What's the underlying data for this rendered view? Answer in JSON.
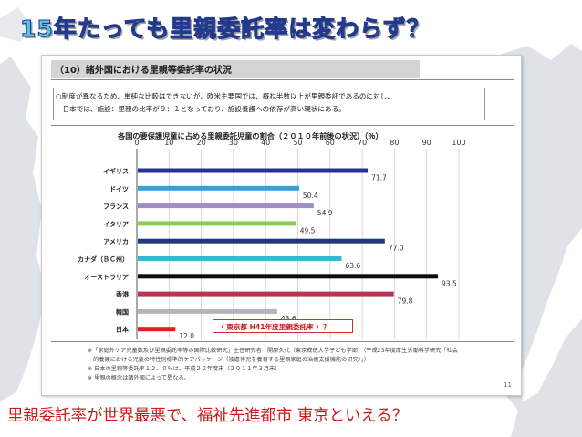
{
  "slide": {
    "title": "15年たっても里親委託率は変わらず？",
    "bottom_text": "里親委託率が世界最悪で、福祉先進都市 東京といえる？"
  },
  "doc": {
    "heading": "（10）諸外国における里親等委託率の状況",
    "note_line1": "○制度が異なるため、単純な比較はできないが、欧米主要国では、概ね半数以上が里親委託であるのに対し、",
    "note_line2": "　日本では、施設：里親の比率が９：１となっており、施設養護への依存が高い現状にある。",
    "footnotes": [
      "※「家庭外ケア児童数及び里親委託率等の国際比較研究」主任研究者　開原久代（東京成徳大学子ども学部）（平成23年度厚生労働科学研究「社会",
      "　的養護における児童の特性別標準的ケアパッケージ（被虐待児を養育する里親家庭の治療支援機能の研究）」）",
      "※ 日本の里親等委託率１２．０％は、平成２２年度末（２０１１年３月末）",
      "※ 里親の概念は諸外国によって異なる。"
    ],
    "page_number": "11"
  },
  "annotation": {
    "text": "（ 東京都 H41年度里親委託率 ）？"
  },
  "chart_data": {
    "type": "bar",
    "orientation": "horizontal",
    "title": "各国の要保護児童に占める里親委託児童の割合（２０１０年前後の状況）（％）",
    "categories": [
      "イギリス",
      "ドイツ",
      "フランス",
      "イタリア",
      "アメリカ",
      "カナダ（ＢＣ州）",
      "オーストラリア",
      "香港",
      "韓国",
      "日本"
    ],
    "values": [
      71.7,
      50.4,
      54.9,
      49.5,
      77.0,
      63.6,
      93.5,
      79.8,
      43.6,
      12.0
    ],
    "value_labels": [
      "71.7",
      "50.4",
      "54.9",
      "49.5",
      "77.0",
      "63.6",
      "93.5",
      "79.8",
      "43.6",
      "12.0"
    ],
    "colors": [
      "#27318f",
      "#39a0d6",
      "#9f8dc4",
      "#8ccd4f",
      "#1e3a7a",
      "#3cb7d2",
      "#0d0d0d",
      "#b8364e",
      "#b5b5b5",
      "#e02020"
    ],
    "xlim": [
      0,
      100
    ],
    "xticks": [
      "0",
      "10",
      "20",
      "30",
      "40",
      "50",
      "60",
      "70",
      "80",
      "90",
      "100"
    ],
    "grid": true,
    "legend": "none"
  }
}
